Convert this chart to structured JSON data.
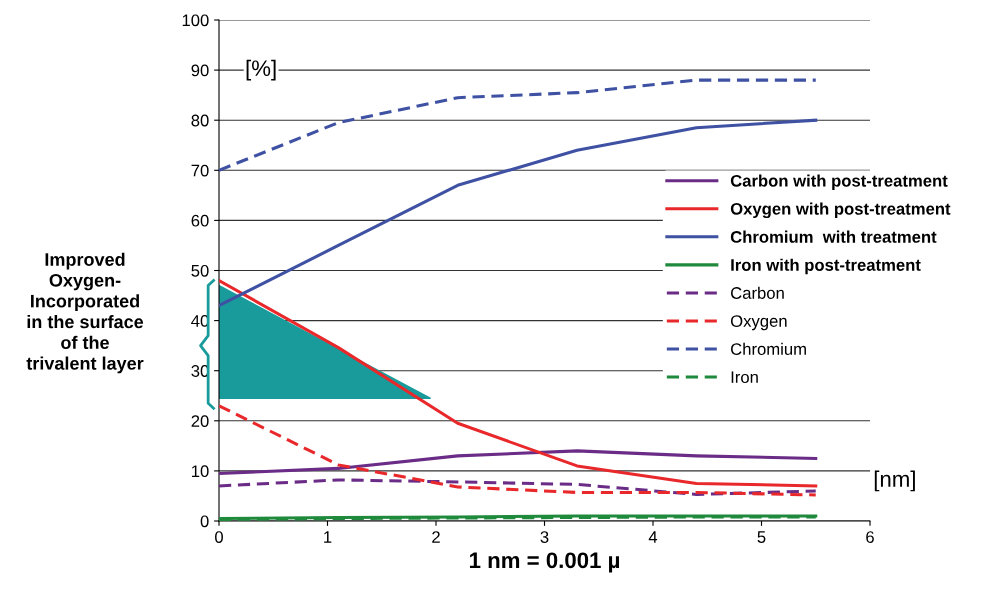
{
  "chart_data": {
    "type": "line",
    "xlabel": "1 nm = 0.001 µ",
    "ylabel": "[%]",
    "x": [
      0,
      1.1,
      2.2,
      3.3,
      4.4,
      5.5
    ],
    "series": [
      {
        "name": "Carbon with post-treatment",
        "color": "#6a2c86",
        "line_style": "solid",
        "values": [
          9.5,
          10.5,
          13,
          14,
          13,
          12.5
        ]
      },
      {
        "name": "Oxygen with post-treatment",
        "color": "#e8282b",
        "line_style": "solid",
        "values": [
          48,
          34.6,
          19.5,
          11,
          7.5,
          7
        ]
      },
      {
        "name": "Chromium  with treatment",
        "color": "#3f51a3",
        "line_style": "solid",
        "values": [
          43,
          55,
          67,
          74,
          78.5,
          80
        ]
      },
      {
        "name": "Iron with post-treatment",
        "color": "#1f8a3c",
        "line_style": "solid",
        "values": [
          0.5,
          0.7,
          0.8,
          1,
          1,
          1
        ]
      },
      {
        "name": "Carbon",
        "color": "#6a2c86",
        "line_style": "dashed",
        "values": [
          7,
          8.2,
          7.8,
          7.3,
          5.3,
          6
        ]
      },
      {
        "name": "Oxygen",
        "color": "#e8282b",
        "line_style": "dashed",
        "values": [
          23,
          11.2,
          6.8,
          5.7,
          5.7,
          5.2
        ]
      },
      {
        "name": "Chromium",
        "color": "#3f51a3",
        "line_style": "dashed",
        "values": [
          70,
          79.5,
          84.5,
          85.5,
          88,
          88
        ]
      },
      {
        "name": "Iron",
        "color": "#1f8a3c",
        "line_style": "dashed",
        "values": [
          0.3,
          0.5,
          0.6,
          0.7,
          0.8,
          0.8
        ]
      }
    ],
    "xlim": [
      0,
      6
    ],
    "xticks": [
      0,
      1,
      2,
      3,
      4,
      5,
      6
    ],
    "ylim": [
      0,
      100
    ],
    "yticks": [
      0,
      10,
      20,
      30,
      40,
      50,
      60,
      70,
      80,
      90,
      100
    ],
    "grid": "y",
    "legend": "right",
    "marker": "none",
    "annotations": [
      "[nm]",
      "Improved\nOxygen-\nIncorporated\nin the surface\nof the\ntrivalent layer"
    ]
  }
}
